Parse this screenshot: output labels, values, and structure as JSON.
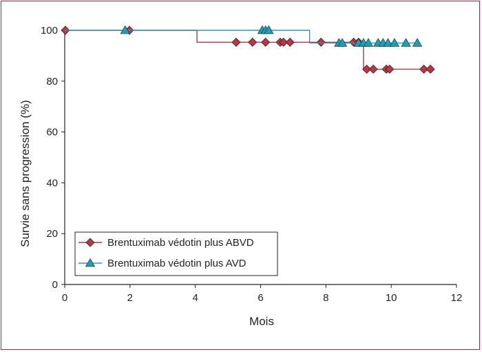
{
  "chart_data": {
    "type": "line",
    "xlabel": "Mois",
    "ylabel": "Survie sans progression (%)",
    "xlim": [
      0,
      12
    ],
    "ylim": [
      0,
      100
    ],
    "xticks": [
      0,
      2,
      4,
      6,
      8,
      10,
      12
    ],
    "yticks": [
      0,
      20,
      40,
      60,
      80,
      100
    ],
    "grid": false,
    "legend_position": "bottom-left",
    "series": [
      {
        "name": "Brentuximab védotin plus ABVD",
        "color": "#b23a48",
        "marker": "diamond",
        "step_x": [
          0,
          4.05,
          9.15,
          11.2
        ],
        "step_y": [
          100,
          95.3,
          84.7,
          84.7
        ],
        "censored": [
          {
            "x": 0.02,
            "y": 100
          },
          {
            "x": 1.98,
            "y": 100
          },
          {
            "x": 5.25,
            "y": 95.3
          },
          {
            "x": 5.75,
            "y": 95.3
          },
          {
            "x": 6.15,
            "y": 95.3
          },
          {
            "x": 6.6,
            "y": 95.3
          },
          {
            "x": 6.7,
            "y": 95.3
          },
          {
            "x": 6.9,
            "y": 95.3
          },
          {
            "x": 7.85,
            "y": 95.3
          },
          {
            "x": 8.85,
            "y": 95.3
          },
          {
            "x": 9.0,
            "y": 95.3
          },
          {
            "x": 9.25,
            "y": 84.7
          },
          {
            "x": 9.45,
            "y": 84.7
          },
          {
            "x": 9.85,
            "y": 84.7
          },
          {
            "x": 9.95,
            "y": 84.7
          },
          {
            "x": 11.0,
            "y": 84.7
          },
          {
            "x": 11.2,
            "y": 84.7
          }
        ]
      },
      {
        "name": "Brentuximab védotin plus AVD",
        "color": "#2a9ab0",
        "marker": "triangle",
        "step_x": [
          0,
          7.5,
          10.8
        ],
        "step_y": [
          100,
          95.0,
          95.0
        ],
        "censored": [
          {
            "x": 1.85,
            "y": 100
          },
          {
            "x": 6.05,
            "y": 100
          },
          {
            "x": 6.15,
            "y": 100
          },
          {
            "x": 6.25,
            "y": 100
          },
          {
            "x": 8.4,
            "y": 95.0
          },
          {
            "x": 8.5,
            "y": 95.0
          },
          {
            "x": 9.0,
            "y": 95.0
          },
          {
            "x": 9.15,
            "y": 95.0
          },
          {
            "x": 9.3,
            "y": 95.0
          },
          {
            "x": 9.6,
            "y": 95.0
          },
          {
            "x": 9.75,
            "y": 95.0
          },
          {
            "x": 9.9,
            "y": 95.0
          },
          {
            "x": 10.1,
            "y": 95.0
          },
          {
            "x": 10.45,
            "y": 95.0
          },
          {
            "x": 10.8,
            "y": 95.0
          }
        ]
      }
    ]
  }
}
